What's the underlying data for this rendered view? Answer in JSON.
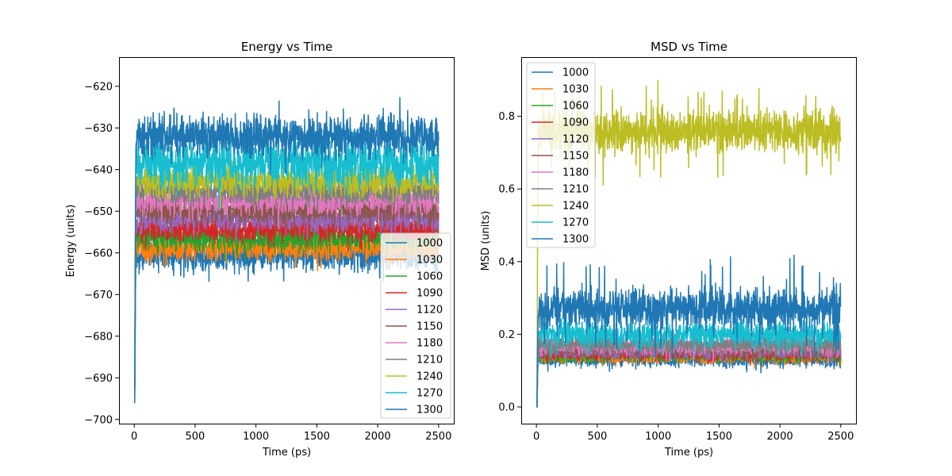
{
  "chart_data": [
    {
      "type": "line",
      "title": "Energy vs Time",
      "xlabel": "Time (ps)",
      "ylabel": "Energy (units)",
      "xlim": [
        -125,
        2625
      ],
      "ylim": [
        -701,
        -613
      ],
      "xticks": [
        0,
        500,
        1000,
        1500,
        2000,
        2500
      ],
      "yticks": [
        -700,
        -690,
        -680,
        -670,
        -660,
        -650,
        -640,
        -630,
        -620
      ],
      "legend": "lower right",
      "grid": false,
      "series": [
        {
          "name": "1000",
          "color": "#1f77b4",
          "start": -695,
          "mean": -660.5,
          "spread": 2.3,
          "peak": 4.0
        },
        {
          "name": "1030",
          "color": "#ff7f0e",
          "start": -694,
          "mean": -658.7,
          "spread": 2.0,
          "peak": 3.6
        },
        {
          "name": "1060",
          "color": "#2ca02c",
          "start": -693,
          "mean": -656.3,
          "spread": 2.0,
          "peak": 3.4
        },
        {
          "name": "1090",
          "color": "#d62728",
          "start": -692,
          "mean": -654.0,
          "spread": 2.0,
          "peak": 3.4
        },
        {
          "name": "1120",
          "color": "#9467bd",
          "start": -691,
          "mean": -651.8,
          "spread": 2.0,
          "peak": 3.4
        },
        {
          "name": "1150",
          "color": "#8c564b",
          "start": -691,
          "mean": -649.5,
          "spread": 2.0,
          "peak": 3.4
        },
        {
          "name": "1180",
          "color": "#e377c2",
          "start": -690,
          "mean": -647.3,
          "spread": 2.0,
          "peak": 3.4
        },
        {
          "name": "1210",
          "color": "#7f7f7f",
          "start": -690,
          "mean": -645.0,
          "spread": 2.0,
          "peak": 3.4
        },
        {
          "name": "1240",
          "color": "#bcbd22",
          "start": -689,
          "mean": -642.7,
          "spread": 2.2,
          "peak": 3.6
        },
        {
          "name": "1270",
          "color": "#17becf",
          "start": -688,
          "mean": -638.5,
          "spread": 3.4,
          "peak": 6.0
        },
        {
          "name": "1300",
          "color": "#1f77b4",
          "start": -696,
          "mean": -632.0,
          "spread": 3.0,
          "peak": 5.5
        }
      ]
    },
    {
      "type": "line",
      "title": "MSD  vs Time",
      "xlabel": "Time (ps)",
      "ylabel": "MSD (units)",
      "xlim": [
        -125,
        2625
      ],
      "ylim": [
        -0.046,
        0.963
      ],
      "xticks": [
        0,
        500,
        1000,
        1500,
        2000,
        2500
      ],
      "yticks": [
        0.0,
        0.2,
        0.4,
        0.6,
        0.8
      ],
      "legend": "upper left",
      "grid": false,
      "series": [
        {
          "name": "1000",
          "color": "#1f77b4",
          "start": 0.0,
          "mean": 0.13,
          "spread": 0.011,
          "peak": 0.02
        },
        {
          "name": "1030",
          "color": "#ff7f0e",
          "start": 0.0,
          "mean": 0.136,
          "spread": 0.01,
          "peak": 0.02
        },
        {
          "name": "1060",
          "color": "#2ca02c",
          "start": 0.0,
          "mean": 0.141,
          "spread": 0.01,
          "peak": 0.02
        },
        {
          "name": "1090",
          "color": "#d62728",
          "start": 0.0,
          "mean": 0.146,
          "spread": 0.01,
          "peak": 0.02
        },
        {
          "name": "1120",
          "color": "#9467bd",
          "start": 0.0,
          "mean": 0.153,
          "spread": 0.011,
          "peak": 0.02
        },
        {
          "name": "1150",
          "color": "#8c564b",
          "start": 0.0,
          "mean": 0.16,
          "spread": 0.012,
          "peak": 0.025
        },
        {
          "name": "1180",
          "color": "#e377c2",
          "start": 0.0,
          "mean": 0.166,
          "spread": 0.013,
          "peak": 0.025
        },
        {
          "name": "1210",
          "color": "#7f7f7f",
          "start": 0.0,
          "mean": 0.172,
          "spread": 0.014,
          "peak": 0.03
        },
        {
          "name": "1240",
          "color": "#bcbd22",
          "start": 0.0,
          "mean": 0.76,
          "spread": 0.035,
          "peak": 0.12
        },
        {
          "name": "1270",
          "color": "#17becf",
          "start": 0.0,
          "mean": 0.2,
          "spread": 0.02,
          "peak": 0.05
        },
        {
          "name": "1300",
          "color": "#1f77b4",
          "start": 0.0,
          "mean": 0.27,
          "spread": 0.034,
          "peak": 0.12
        }
      ]
    }
  ]
}
